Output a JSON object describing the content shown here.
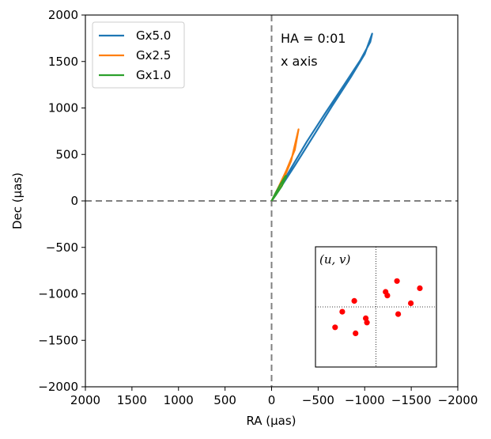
{
  "chart_data": {
    "type": "line",
    "title": "",
    "xlabel": "RA (µas)",
    "ylabel": "Dec (µas)",
    "xlim": [
      2000,
      -2000
    ],
    "ylim": [
      -2000,
      2000
    ],
    "x_inverted": true,
    "xticks": [
      2000,
      1500,
      1000,
      500,
      0,
      -500,
      -1000,
      -1500,
      -2000
    ],
    "yticks": [
      2000,
      1500,
      1000,
      500,
      0,
      -500,
      -1000,
      -1500,
      -2000
    ],
    "xtick_labels": [
      "2000",
      "1500",
      "1000",
      "500",
      "0",
      "−500",
      "−1000",
      "−1500",
      "−2000"
    ],
    "ytick_labels": [
      "2000",
      "1500",
      "1000",
      "500",
      "0",
      "−500",
      "−1000",
      "−1500",
      "−2000"
    ],
    "grid": false,
    "legend_position": "top-left",
    "reference_lines": [
      {
        "orientation": "vertical",
        "x": 0,
        "style": "dashed",
        "color": "#808080"
      },
      {
        "orientation": "horizontal",
        "y": 0,
        "style": "dashed",
        "color": "#808080"
      }
    ],
    "annotations": [
      "HA = 0:01",
      "x axis"
    ],
    "series": [
      {
        "name": "Gx5.0",
        "color": "#1f77b4",
        "x": [
          0,
          -100,
          -250,
          -450,
          -650,
          -850,
          -1000,
          -1080,
          -1060,
          -950,
          -780,
          -580,
          -380,
          -190,
          0
        ],
        "y": [
          0,
          150,
          380,
          700,
          1020,
          1330,
          1580,
          1800,
          1710,
          1510,
          1250,
          950,
          640,
          320,
          0
        ]
      },
      {
        "name": "Gx2.5",
        "color": "#ff7f0e",
        "x": [
          0,
          -60,
          -130,
          -210,
          -290,
          -250,
          -160,
          -80,
          0
        ],
        "y": [
          0,
          90,
          240,
          430,
          770,
          550,
          330,
          160,
          0
        ]
      },
      {
        "name": "Gx1.0",
        "color": "#2ca02c",
        "x": [
          0,
          -40,
          -90,
          -150,
          -160,
          -110,
          -50,
          0
        ],
        "y": [
          0,
          80,
          170,
          270,
          270,
          160,
          70,
          0
        ]
      }
    ],
    "inset": {
      "title": "(u, v)",
      "points": [
        {
          "u": -0.68,
          "v": -0.34
        },
        {
          "u": -0.56,
          "v": -0.08
        },
        {
          "u": -0.36,
          "v": 0.1
        },
        {
          "u": -0.34,
          "v": -0.44
        },
        {
          "u": -0.17,
          "v": -0.19
        },
        {
          "u": -0.15,
          "v": -0.26
        },
        {
          "u": 0.16,
          "v": 0.25
        },
        {
          "u": 0.19,
          "v": 0.19
        },
        {
          "u": 0.35,
          "v": 0.43
        },
        {
          "u": 0.37,
          "v": -0.12
        },
        {
          "u": 0.58,
          "v": 0.06
        },
        {
          "u": 0.73,
          "v": 0.31
        }
      ],
      "point_color": "#ff0000"
    }
  }
}
